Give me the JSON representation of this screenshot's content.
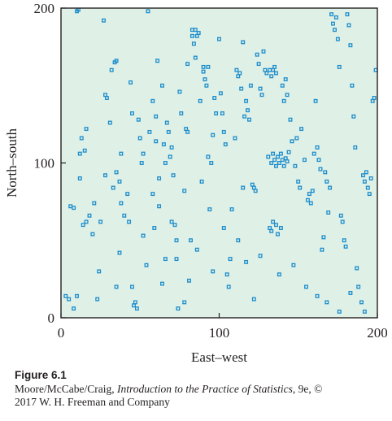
{
  "chart_data": {
    "type": "scatter",
    "title": "",
    "xlabel": "East–west",
    "ylabel": "North–south",
    "xlim": [
      0,
      200
    ],
    "ylim": [
      0,
      200
    ],
    "xticks": [
      0,
      100,
      200
    ],
    "yticks": [
      0,
      100,
      200
    ],
    "grid": false,
    "legend": "none",
    "colors": {
      "plot_background": "#dff0e6",
      "marker": "#1a8ccc",
      "axis": "#231f20"
    },
    "series": [
      {
        "marker": "small-square",
        "points": [
          [
            3,
            14
          ],
          [
            5,
            12
          ],
          [
            8,
            6
          ],
          [
            10,
            14
          ],
          [
            6,
            72
          ],
          [
            8,
            71
          ],
          [
            12,
            90
          ],
          [
            12,
            106
          ],
          [
            13,
            116
          ],
          [
            15,
            108
          ],
          [
            16,
            122
          ],
          [
            14,
            60
          ],
          [
            16,
            62
          ],
          [
            18,
            66
          ],
          [
            10,
            198
          ],
          [
            11,
            199
          ],
          [
            20,
            54
          ],
          [
            21,
            74
          ],
          [
            24,
            30
          ],
          [
            25,
            62
          ],
          [
            27,
            192
          ],
          [
            28,
            144
          ],
          [
            29,
            142
          ],
          [
            31,
            126
          ],
          [
            32,
            160
          ],
          [
            34,
            165
          ],
          [
            35,
            166
          ],
          [
            33,
            84
          ],
          [
            35,
            94
          ],
          [
            37,
            88
          ],
          [
            38,
            74
          ],
          [
            38,
            106
          ],
          [
            37,
            42
          ],
          [
            40,
            66
          ],
          [
            42,
            80
          ],
          [
            43,
            62
          ],
          [
            44,
            152
          ],
          [
            45,
            20
          ],
          [
            46,
            8
          ],
          [
            47,
            10
          ],
          [
            48,
            6
          ],
          [
            49,
            128
          ],
          [
            50,
            116
          ],
          [
            51,
            100
          ],
          [
            52,
            106
          ],
          [
            52,
            53
          ],
          [
            54,
            34
          ],
          [
            55,
            198
          ],
          [
            56,
            120
          ],
          [
            58,
            80
          ],
          [
            59,
            58
          ],
          [
            60,
            114
          ],
          [
            60,
            130
          ],
          [
            61,
            166
          ],
          [
            62,
            90
          ],
          [
            62,
            72
          ],
          [
            64,
            150
          ],
          [
            65,
            112
          ],
          [
            66,
            100
          ],
          [
            66,
            38
          ],
          [
            67,
            126
          ],
          [
            68,
            120
          ],
          [
            69,
            104
          ],
          [
            70,
            110
          ],
          [
            70,
            62
          ],
          [
            71,
            92
          ],
          [
            72,
            60
          ],
          [
            73,
            38
          ],
          [
            73,
            50
          ],
          [
            74,
            6
          ],
          [
            75,
            146
          ],
          [
            76,
            132
          ],
          [
            78,
            82
          ],
          [
            79,
            122
          ],
          [
            80,
            164
          ],
          [
            80,
            120
          ],
          [
            81,
            24
          ],
          [
            82,
            50
          ],
          [
            83,
            186
          ],
          [
            83,
            182
          ],
          [
            84,
            177
          ],
          [
            85,
            186
          ],
          [
            86,
            182
          ],
          [
            87,
            184
          ],
          [
            85,
            168
          ],
          [
            88,
            140
          ],
          [
            89,
            88
          ],
          [
            90,
            162
          ],
          [
            90,
            159
          ],
          [
            91,
            154
          ],
          [
            92,
            150
          ],
          [
            93,
            162
          ],
          [
            93,
            104
          ],
          [
            94,
            70
          ],
          [
            95,
            100
          ],
          [
            96,
            118
          ],
          [
            97,
            142
          ],
          [
            98,
            132
          ],
          [
            100,
            180
          ],
          [
            101,
            145
          ],
          [
            102,
            132
          ],
          [
            103,
            120
          ],
          [
            104,
            112
          ],
          [
            105,
            28
          ],
          [
            106,
            20
          ],
          [
            107,
            38
          ],
          [
            108,
            70
          ],
          [
            110,
            116
          ],
          [
            111,
            160
          ],
          [
            112,
            156
          ],
          [
            113,
            158
          ],
          [
            114,
            148
          ],
          [
            115,
            178
          ],
          [
            115,
            84
          ],
          [
            116,
            130
          ],
          [
            117,
            140
          ],
          [
            118,
            134
          ],
          [
            119,
            128
          ],
          [
            120,
            150
          ],
          [
            121,
            86
          ],
          [
            122,
            84
          ],
          [
            123,
            82
          ],
          [
            124,
            170
          ],
          [
            125,
            164
          ],
          [
            126,
            148
          ],
          [
            127,
            144
          ],
          [
            128,
            172
          ],
          [
            129,
            160
          ],
          [
            130,
            158
          ],
          [
            132,
            160
          ],
          [
            133,
            156
          ],
          [
            134,
            160
          ],
          [
            135,
            162
          ],
          [
            136,
            158
          ],
          [
            131,
            104
          ],
          [
            133,
            100
          ],
          [
            134,
            106
          ],
          [
            135,
            102
          ],
          [
            136,
            98
          ],
          [
            137,
            104
          ],
          [
            138,
            100
          ],
          [
            139,
            106
          ],
          [
            140,
            102
          ],
          [
            141,
            98
          ],
          [
            142,
            103
          ],
          [
            143,
            101
          ],
          [
            144,
            107
          ],
          [
            132,
            58
          ],
          [
            133,
            56
          ],
          [
            134,
            62
          ],
          [
            136,
            60
          ],
          [
            137,
            54
          ],
          [
            139,
            58
          ],
          [
            140,
            150
          ],
          [
            141,
            140
          ],
          [
            142,
            154
          ],
          [
            143,
            144
          ],
          [
            145,
            128
          ],
          [
            146,
            114
          ],
          [
            148,
            98
          ],
          [
            149,
            116
          ],
          [
            150,
            88
          ],
          [
            151,
            84
          ],
          [
            152,
            122
          ],
          [
            154,
            102
          ],
          [
            156,
            76
          ],
          [
            157,
            80
          ],
          [
            158,
            74
          ],
          [
            159,
            82
          ],
          [
            160,
            106
          ],
          [
            161,
            140
          ],
          [
            162,
            110
          ],
          [
            163,
            102
          ],
          [
            164,
            96
          ],
          [
            165,
            44
          ],
          [
            166,
            52
          ],
          [
            167,
            94
          ],
          [
            168,
            88
          ],
          [
            169,
            68
          ],
          [
            170,
            84
          ],
          [
            171,
            196
          ],
          [
            172,
            190
          ],
          [
            173,
            186
          ],
          [
            174,
            194
          ],
          [
            175,
            180
          ],
          [
            176,
            162
          ],
          [
            177,
            66
          ],
          [
            178,
            62
          ],
          [
            179,
            50
          ],
          [
            180,
            46
          ],
          [
            181,
            196
          ],
          [
            182,
            189
          ],
          [
            183,
            176
          ],
          [
            184,
            150
          ],
          [
            185,
            130
          ],
          [
            186,
            110
          ],
          [
            187,
            32
          ],
          [
            188,
            20
          ],
          [
            190,
            10
          ],
          [
            191,
            92
          ],
          [
            192,
            88
          ],
          [
            193,
            94
          ],
          [
            194,
            84
          ],
          [
            195,
            80
          ],
          [
            196,
            90
          ],
          [
            197,
            140
          ],
          [
            198,
            142
          ],
          [
            199,
            160
          ],
          [
            45,
            132
          ],
          [
            58,
            140
          ],
          [
            103,
            58
          ],
          [
            117,
            36
          ],
          [
            122,
            12
          ],
          [
            147,
            34
          ],
          [
            155,
            20
          ],
          [
            162,
            14
          ],
          [
            168,
            10
          ],
          [
            176,
            4
          ],
          [
            183,
            16
          ],
          [
            192,
            4
          ],
          [
            28,
            92
          ],
          [
            23,
            12
          ],
          [
            35,
            20
          ],
          [
            64,
            22
          ],
          [
            78,
            10
          ],
          [
            86,
            44
          ],
          [
            96,
            30
          ],
          [
            112,
            50
          ],
          [
            126,
            40
          ],
          [
            138,
            28
          ]
        ]
      }
    ]
  },
  "caption": {
    "figure_label": "Figure 6.1",
    "authors": "Moore/McCabe/Craig, ",
    "book_title": "Introduction to the Practice of Statistics",
    "edition_text": ", 9e, ©",
    "publisher_line": "2017 W. H. Freeman and Company"
  }
}
